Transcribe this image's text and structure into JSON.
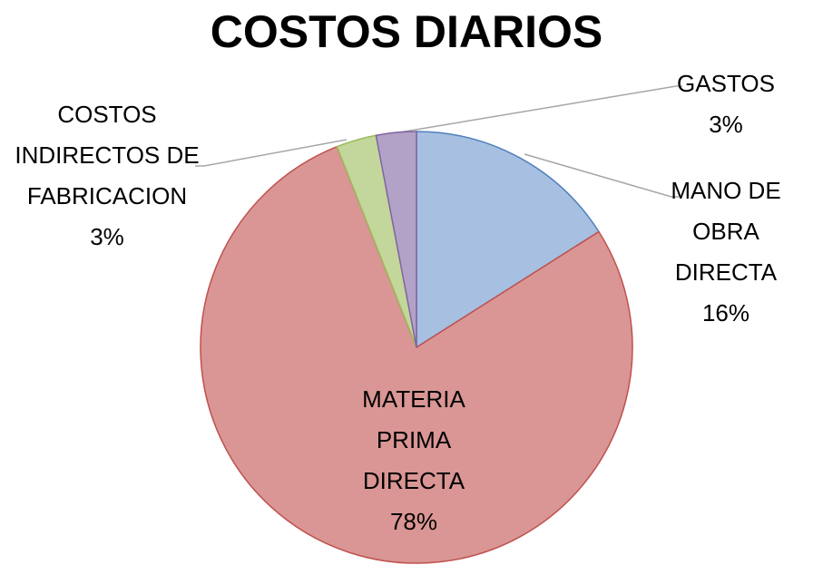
{
  "chart_data": {
    "type": "pie",
    "title": "COSTOS DIARIOS",
    "categories": [
      "MANO DE OBRA DIRECTA",
      "MATERIA PRIMA DIRECTA",
      "COSTOS INDIRECTOS DE FABRICACION",
      "GASTOS"
    ],
    "values": [
      16,
      78,
      3,
      3
    ],
    "value_labels": [
      "16%",
      "78%",
      "3%",
      "3%"
    ],
    "colors": [
      "#a7bfe0",
      "#d99694",
      "#c3d69b",
      "#b3a2c7"
    ]
  }
}
